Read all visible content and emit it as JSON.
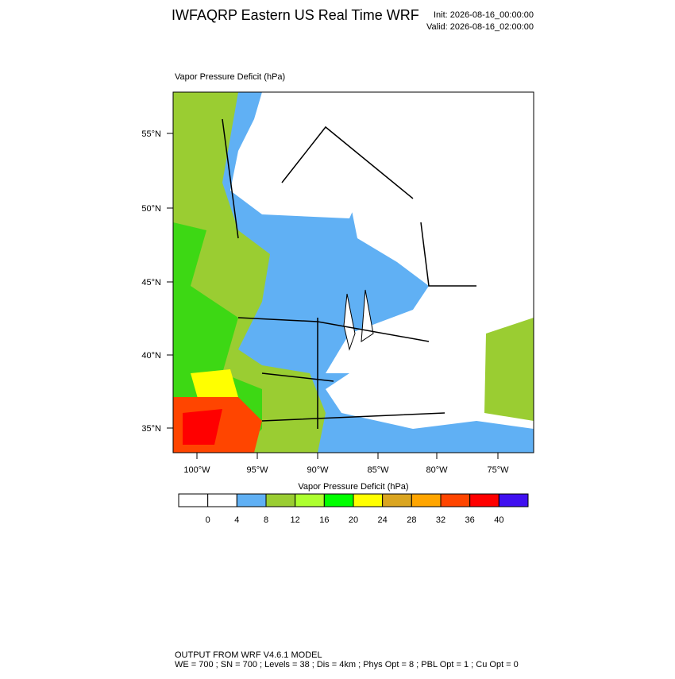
{
  "header": {
    "title": "IWFAQRP Eastern US Real Time WRF",
    "init": "Init: 2026-08-16_00:00:00",
    "valid": "Valid: 2026-08-16_02:00:00"
  },
  "map": {
    "title": "Vapor Pressure Deficit   (hPa)",
    "lat_ticks": [
      "55°N",
      "50°N",
      "45°N",
      "40°N",
      "35°N"
    ],
    "lon_ticks": [
      "100°W",
      "95°W",
      "90°W",
      "85°W",
      "80°W",
      "75°W"
    ]
  },
  "colorbar": {
    "title": "Vapor Pressure Deficit  (hPa)",
    "levels": [
      0,
      4,
      8,
      12,
      16,
      20,
      24,
      28,
      32,
      36,
      40
    ],
    "colors": [
      "#ffffff",
      "#ffffff",
      "#60b0f4",
      "#9acd32",
      "#adff2f",
      "#00ff00",
      "#ffff00",
      "#daa520",
      "#ffa500",
      "#ff4500",
      "#ff0000",
      "#4010f0"
    ]
  },
  "footer": {
    "line1": "OUTPUT FROM WRF V4.6.1 MODEL",
    "line2": "WE = 700 ; SN = 700 ; Levels = 38 ; Dis = 4km ; Phys Opt = 8 ; PBL Opt = 1 ; Cu Opt = 0"
  }
}
